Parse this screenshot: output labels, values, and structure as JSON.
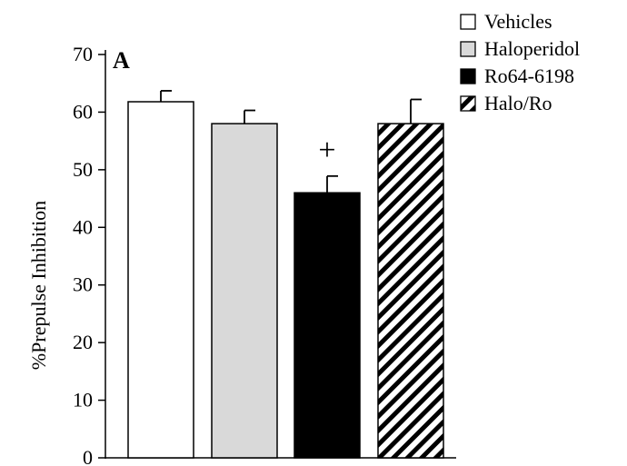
{
  "chart_data": {
    "type": "bar",
    "panel_label": "A",
    "ylabel": "%Prepulse Inhibition",
    "xlabel": "",
    "ylim": [
      0,
      70
    ],
    "yticks": [
      0,
      10,
      20,
      30,
      40,
      50,
      60,
      70
    ],
    "categories": [
      "Vehicles",
      "Haloperidol",
      "Ro64-6198",
      "Halo/Ro"
    ],
    "values": [
      61.8,
      58,
      46,
      58
    ],
    "errors": [
      1.9,
      2.3,
      2.9,
      4.2
    ],
    "annotations": [
      {
        "category": "Ro64-6198",
        "text": "+"
      }
    ],
    "legend": {
      "placement": "top-right",
      "entries": [
        {
          "label": "Vehicles",
          "fill": "white"
        },
        {
          "label": "Haloperidol",
          "fill": "light-gray"
        },
        {
          "label": "Ro64-6198",
          "fill": "black"
        },
        {
          "label": "Halo/Ro",
          "fill": "diagonal-hatch"
        }
      ]
    },
    "grid": false,
    "colors": {
      "white": "#ffffff",
      "light-gray": "#d9d9d9",
      "black": "#000000",
      "diagonal-hatch": "#000000"
    }
  }
}
